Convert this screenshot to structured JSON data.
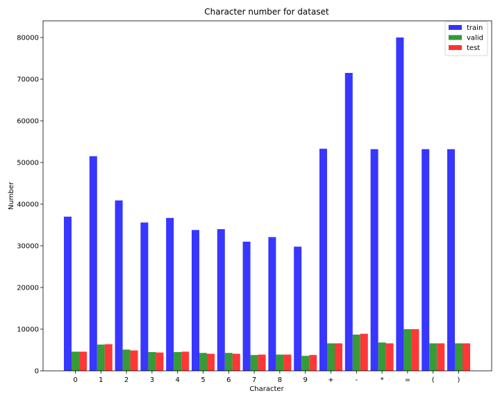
{
  "chart_data": {
    "type": "bar",
    "title": "Character number for dataset",
    "xlabel": "Character",
    "ylabel": "Number",
    "ylim": [
      0,
      84000
    ],
    "yticks": [
      0,
      10000,
      20000,
      30000,
      40000,
      50000,
      60000,
      70000,
      80000
    ],
    "categories": [
      "0",
      "1",
      "2",
      "3",
      "4",
      "5",
      "6",
      "7",
      "8",
      "9",
      "+",
      "-",
      "*",
      "=",
      "(",
      ")"
    ],
    "legend_position": "top-right",
    "grid": false,
    "series": [
      {
        "name": "train",
        "color": "#3333ff",
        "values": [
          37000,
          51500,
          40900,
          35600,
          36700,
          33800,
          34000,
          31000,
          32100,
          29800,
          53300,
          71500,
          53200,
          80000,
          53200,
          53200
        ]
      },
      {
        "name": "valid",
        "color": "#339933",
        "values": [
          4600,
          6300,
          5100,
          4500,
          4500,
          4300,
          4300,
          3800,
          3900,
          3600,
          6600,
          8700,
          6800,
          10000,
          6600,
          6600
        ]
      },
      {
        "name": "test",
        "color": "#ff3333",
        "values": [
          4600,
          6400,
          4900,
          4400,
          4600,
          4100,
          4100,
          3900,
          3900,
          3800,
          6600,
          8900,
          6600,
          10000,
          6600,
          6600
        ]
      }
    ]
  }
}
